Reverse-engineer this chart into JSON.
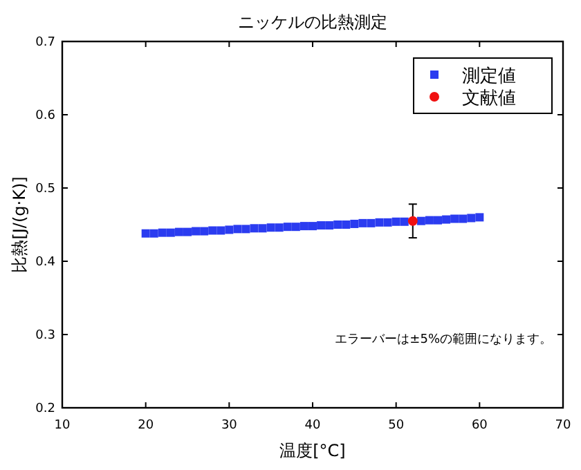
{
  "chart_data": {
    "type": "scatter",
    "title": "ニッケルの比熱測定",
    "xlabel": "温度[°C]",
    "ylabel": "比熱[J/(g·K)]",
    "xlim": [
      10,
      70
    ],
    "ylim": [
      0.2,
      0.7
    ],
    "xticks": [
      10,
      20,
      30,
      40,
      50,
      60,
      70
    ],
    "yticks": [
      0.2,
      0.3,
      0.4,
      0.5,
      0.6,
      0.7
    ],
    "legend": "top right",
    "series": [
      {
        "name": "測定値",
        "color": "#2b3cf0",
        "marker": "square",
        "x": [
          20,
          21,
          22,
          23,
          24,
          25,
          26,
          27,
          28,
          29,
          30,
          31,
          32,
          33,
          34,
          35,
          36,
          37,
          38,
          39,
          40,
          41,
          42,
          43,
          44,
          45,
          46,
          47,
          48,
          49,
          50,
          51,
          53,
          54,
          55,
          56,
          57,
          58,
          59,
          60
        ],
        "values": [
          0.438,
          0.438,
          0.439,
          0.439,
          0.44,
          0.44,
          0.441,
          0.441,
          0.442,
          0.442,
          0.443,
          0.444,
          0.444,
          0.445,
          0.445,
          0.446,
          0.446,
          0.447,
          0.447,
          0.448,
          0.448,
          0.449,
          0.449,
          0.45,
          0.45,
          0.451,
          0.452,
          0.452,
          0.453,
          0.453,
          0.454,
          0.454,
          0.455,
          0.456,
          0.456,
          0.457,
          0.458,
          0.458,
          0.459,
          0.46
        ]
      },
      {
        "name": "文献値",
        "color": "#f01010",
        "marker": "circle",
        "x": [
          52
        ],
        "values": [
          0.455
        ],
        "errors": [
          0.023
        ]
      }
    ],
    "annotations": [
      "エラーバーは±5%の範囲になります。"
    ]
  }
}
